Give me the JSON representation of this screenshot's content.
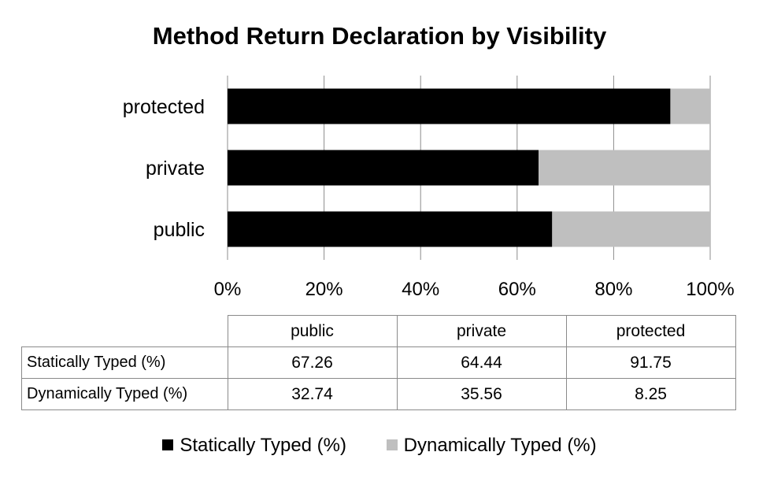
{
  "chart_data": {
    "type": "bar",
    "orientation": "horizontal",
    "stacked": "percent",
    "title": "Method Return Declaration by Visibility",
    "categories": [
      "public",
      "private",
      "protected"
    ],
    "series": [
      {
        "name": "Statically Typed (%)",
        "values": [
          67.26,
          64.44,
          91.75
        ],
        "color": "#000000"
      },
      {
        "name": "Dynamically Typed (%)",
        "values": [
          32.74,
          35.56,
          8.25
        ],
        "color": "#bfbfbf"
      }
    ],
    "xlim": [
      0,
      100
    ],
    "x_ticks": [
      "0%",
      "20%",
      "40%",
      "60%",
      "80%",
      "100%"
    ],
    "grid": true,
    "legend": "bottom",
    "data_table": {
      "headers": [
        "public",
        "private",
        "protected"
      ],
      "rows": [
        {
          "label": "Statically Typed (%)",
          "values": [
            "67.26",
            "64.44",
            "91.75"
          ]
        },
        {
          "label": "Dynamically Typed (%)",
          "values": [
            "32.74",
            "35.56",
            "8.25"
          ]
        }
      ]
    }
  }
}
